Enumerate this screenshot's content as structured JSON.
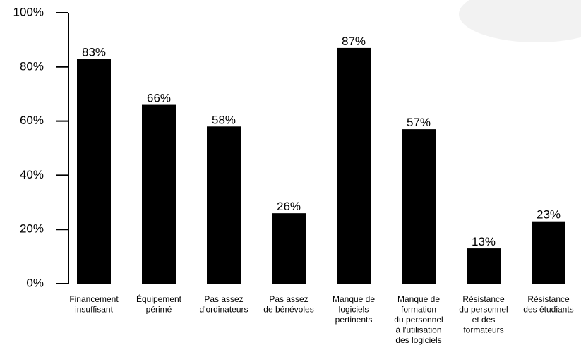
{
  "chart_data": {
    "type": "bar",
    "categories": [
      "Financement\ninsuffisant",
      "Équipement\npérimé",
      "Pas assez\nd'ordinateurs",
      "Pas assez\nde bénévoles",
      "Manque de\nlogiciels\npertinents",
      "Manque de\nformation\ndu personnel\nà l'utilisation\ndes logiciels",
      "Résistance\ndu personnel\net des\nformateurs",
      "Résistance\ndes étudiants"
    ],
    "values": [
      83,
      66,
      58,
      26,
      87,
      57,
      13,
      23
    ],
    "value_labels": [
      "83%",
      "66%",
      "58%",
      "26%",
      "87%",
      "57%",
      "13%",
      "23%"
    ],
    "color": "#000000",
    "ylim": [
      0,
      100
    ],
    "yticks": [
      {
        "value": 0,
        "label": "0%"
      },
      {
        "value": 20,
        "label": "20%"
      },
      {
        "value": 40,
        "label": "40%"
      },
      {
        "value": 60,
        "label": "60%"
      },
      {
        "value": 80,
        "label": "80%"
      },
      {
        "value": 100,
        "label": "100%"
      }
    ]
  }
}
